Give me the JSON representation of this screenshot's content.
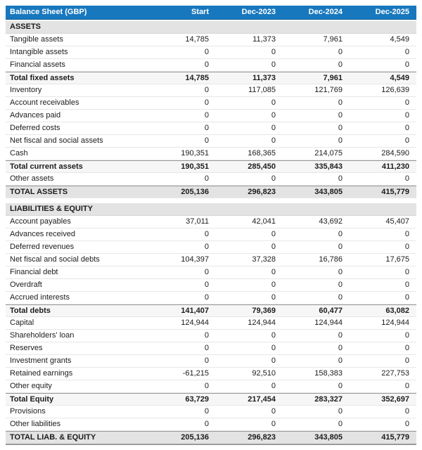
{
  "title": "Balance Sheet (GBP)",
  "columns": [
    "Start",
    "Dec-2023",
    "Dec-2024",
    "Dec-2025"
  ],
  "colors": {
    "header_bg": "#1878be",
    "header_text": "#ffffff",
    "section_bg": "#e3e3e3",
    "subtotal_bg": "#f6f6f6",
    "row_border": "#e7e7e7",
    "total_border": "#9a9a9a",
    "text": "#1c1c1c"
  },
  "sections": [
    {
      "header": "ASSETS",
      "rows": [
        {
          "label": "Tangible assets",
          "values": [
            "14,785",
            "11,373",
            "7,961",
            "4,549"
          ],
          "style": "normal"
        },
        {
          "label": "Intangible assets",
          "values": [
            "0",
            "0",
            "0",
            "0"
          ],
          "style": "normal"
        },
        {
          "label": "Financial assets",
          "values": [
            "0",
            "0",
            "0",
            "0"
          ],
          "style": "normal"
        },
        {
          "label": "Total fixed assets",
          "values": [
            "14,785",
            "11,373",
            "7,961",
            "4,549"
          ],
          "style": "subtotal"
        },
        {
          "label": "Inventory",
          "values": [
            "0",
            "117,085",
            "121,769",
            "126,639"
          ],
          "style": "normal"
        },
        {
          "label": "Account receivables",
          "values": [
            "0",
            "0",
            "0",
            "0"
          ],
          "style": "normal"
        },
        {
          "label": "Advances paid",
          "values": [
            "0",
            "0",
            "0",
            "0"
          ],
          "style": "normal"
        },
        {
          "label": "Deferred costs",
          "values": [
            "0",
            "0",
            "0",
            "0"
          ],
          "style": "normal"
        },
        {
          "label": "Net fiscal and social assets",
          "values": [
            "0",
            "0",
            "0",
            "0"
          ],
          "style": "normal"
        },
        {
          "label": "Cash",
          "values": [
            "190,351",
            "168,365",
            "214,075",
            "284,590"
          ],
          "style": "normal"
        },
        {
          "label": "Total current assets",
          "values": [
            "190,351",
            "285,450",
            "335,843",
            "411,230"
          ],
          "style": "subtotal"
        },
        {
          "label": "Other assets",
          "values": [
            "0",
            "0",
            "0",
            "0"
          ],
          "style": "normal"
        },
        {
          "label": "TOTAL ASSETS",
          "values": [
            "205,136",
            "296,823",
            "343,805",
            "415,779"
          ],
          "style": "grand"
        }
      ]
    },
    {
      "header": "LIABILITIES & EQUITY",
      "rows": [
        {
          "label": "Account payables",
          "values": [
            "37,011",
            "42,041",
            "43,692",
            "45,407"
          ],
          "style": "normal"
        },
        {
          "label": "Advances received",
          "values": [
            "0",
            "0",
            "0",
            "0"
          ],
          "style": "normal"
        },
        {
          "label": "Deferred revenues",
          "values": [
            "0",
            "0",
            "0",
            "0"
          ],
          "style": "normal"
        },
        {
          "label": "Net fiscal and social debts",
          "values": [
            "104,397",
            "37,328",
            "16,786",
            "17,675"
          ],
          "style": "normal"
        },
        {
          "label": "Financial debt",
          "values": [
            "0",
            "0",
            "0",
            "0"
          ],
          "style": "normal"
        },
        {
          "label": "Overdraft",
          "values": [
            "0",
            "0",
            "0",
            "0"
          ],
          "style": "normal"
        },
        {
          "label": "Accrued interests",
          "values": [
            "0",
            "0",
            "0",
            "0"
          ],
          "style": "normal"
        },
        {
          "label": "Total debts",
          "values": [
            "141,407",
            "79,369",
            "60,477",
            "63,082"
          ],
          "style": "subtotal"
        },
        {
          "label": "Capital",
          "values": [
            "124,944",
            "124,944",
            "124,944",
            "124,944"
          ],
          "style": "normal"
        },
        {
          "label": "Shareholders' loan",
          "values": [
            "0",
            "0",
            "0",
            "0"
          ],
          "style": "normal"
        },
        {
          "label": "Reserves",
          "values": [
            "0",
            "0",
            "0",
            "0"
          ],
          "style": "normal"
        },
        {
          "label": "Investment grants",
          "values": [
            "0",
            "0",
            "0",
            "0"
          ],
          "style": "normal"
        },
        {
          "label": "Retained earnings",
          "values": [
            "-61,215",
            "92,510",
            "158,383",
            "227,753"
          ],
          "style": "normal"
        },
        {
          "label": "Other equity",
          "values": [
            "0",
            "0",
            "0",
            "0"
          ],
          "style": "normal"
        },
        {
          "label": "Total Equity",
          "values": [
            "63,729",
            "217,454",
            "283,327",
            "352,697"
          ],
          "style": "subtotal"
        },
        {
          "label": "Provisions",
          "values": [
            "0",
            "0",
            "0",
            "0"
          ],
          "style": "normal"
        },
        {
          "label": "Other liabilities",
          "values": [
            "0",
            "0",
            "0",
            "0"
          ],
          "style": "normal"
        },
        {
          "label": "TOTAL LIAB. & EQUITY",
          "values": [
            "205,136",
            "296,823",
            "343,805",
            "415,779"
          ],
          "style": "grand-end"
        }
      ]
    }
  ]
}
